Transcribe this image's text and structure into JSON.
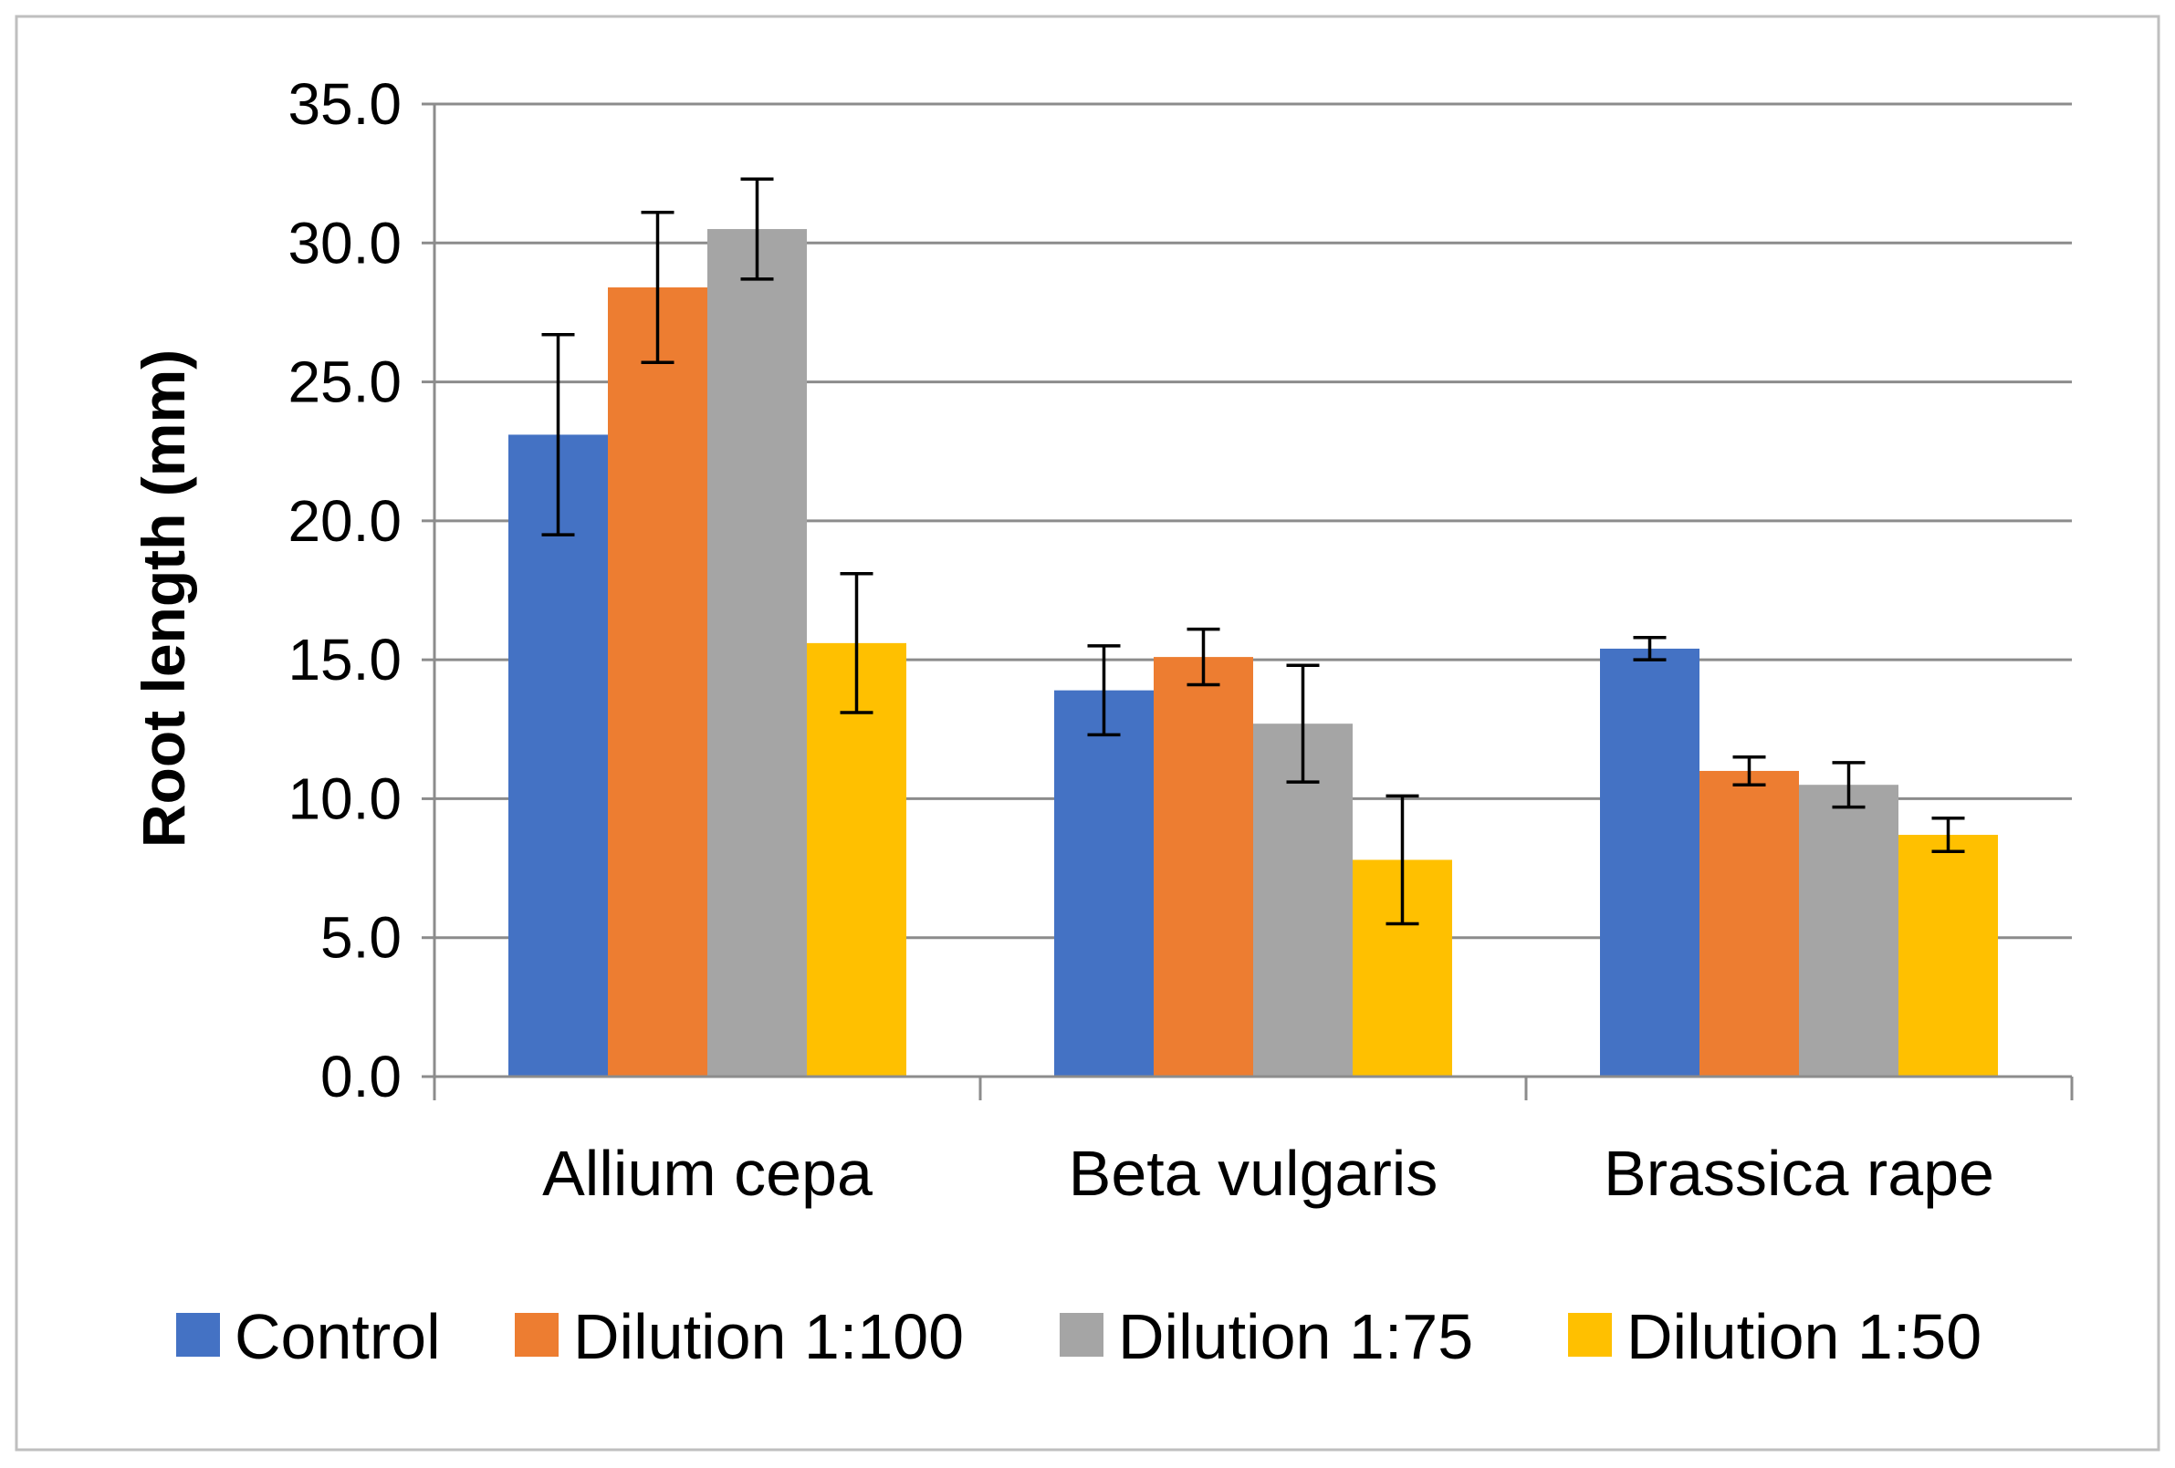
{
  "chart_data": {
    "type": "bar",
    "title": "",
    "xlabel": "",
    "ylabel": "Root length (mm)",
    "ylim": [
      0,
      35
    ],
    "ytick_labels": [
      "0.0",
      "5.0",
      "10.0",
      "15.0",
      "20.0",
      "25.0",
      "30.0",
      "35.0"
    ],
    "ytick_values": [
      0,
      5,
      10,
      15,
      20,
      25,
      30,
      35
    ],
    "grid": true,
    "legend_position": "bottom",
    "categories": [
      "Allium cepa",
      "Beta vulgaris",
      "Brassica rape"
    ],
    "series": [
      {
        "name": "Control",
        "color": "#4472C4",
        "values": [
          23.1,
          13.9,
          15.4
        ],
        "errors": [
          3.6,
          1.6,
          0.4
        ]
      },
      {
        "name": "Dilution 1:100",
        "color": "#ED7D31",
        "values": [
          28.4,
          15.1,
          11.0
        ],
        "errors": [
          2.7,
          1.0,
          0.5
        ]
      },
      {
        "name": "Dilution 1:75",
        "color": "#A5A5A5",
        "values": [
          30.5,
          12.7,
          10.5
        ],
        "errors": [
          1.8,
          2.1,
          0.8
        ]
      },
      {
        "name": "Dilution 1:50",
        "color": "#FFC000",
        "values": [
          15.6,
          7.8,
          8.7
        ],
        "errors": [
          2.5,
          2.3,
          0.6
        ]
      }
    ]
  }
}
